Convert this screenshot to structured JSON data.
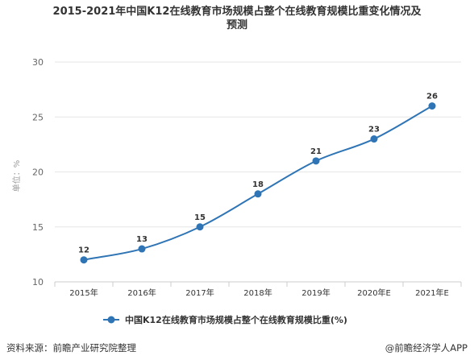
{
  "chart_data": {
    "type": "line",
    "title_lines": [
      "2015-2021年中国K12在线教育市场规模占整个在线教育规模比重变化情况及",
      "预测"
    ],
    "categories": [
      "2015年",
      "2016年",
      "2017年",
      "2018年",
      "2019年",
      "2020年E",
      "2021年E"
    ],
    "series": [
      {
        "name": "中国K12在线教育市场规模占整个在线教育规模比重(%)",
        "values": [
          12,
          13,
          15,
          18,
          21,
          23,
          26
        ],
        "color": "#2f75b5"
      }
    ],
    "ylabel": "单位：%",
    "ylim": [
      10,
      30
    ],
    "yticks": [
      10,
      15,
      20,
      25,
      30
    ],
    "grid": true,
    "legend_position": "bottom-center"
  },
  "footer": {
    "source": "资料来源：前瞻产业研究院整理",
    "brand": "@前瞻经济学人APP"
  }
}
